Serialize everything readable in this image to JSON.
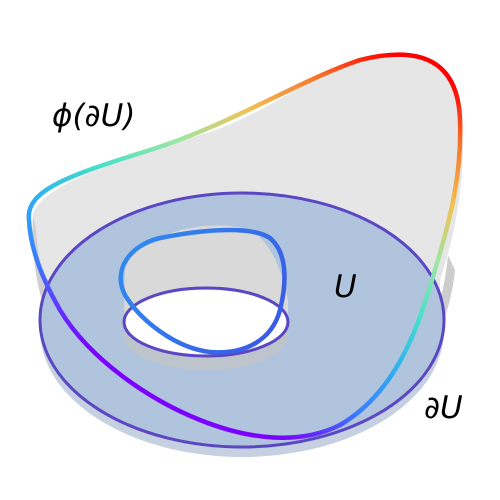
{
  "labels": {
    "phi_boundary": "ϕ(∂U)",
    "domain": "U",
    "boundary": "∂U"
  },
  "colors": {
    "domain_fill": "#b0c4de",
    "domain_edge": "#5b47c4",
    "surface_fill": "#e6e6e6",
    "surface_shadow": "#b8b8b8",
    "hole_fill": "#ffffff",
    "curve_gradient": [
      "#7b00ff",
      "#3a7bff",
      "#2fb0f0",
      "#46e0c8",
      "#9ee6a6",
      "#f0c255",
      "#f57a2c",
      "#ff0000"
    ]
  }
}
